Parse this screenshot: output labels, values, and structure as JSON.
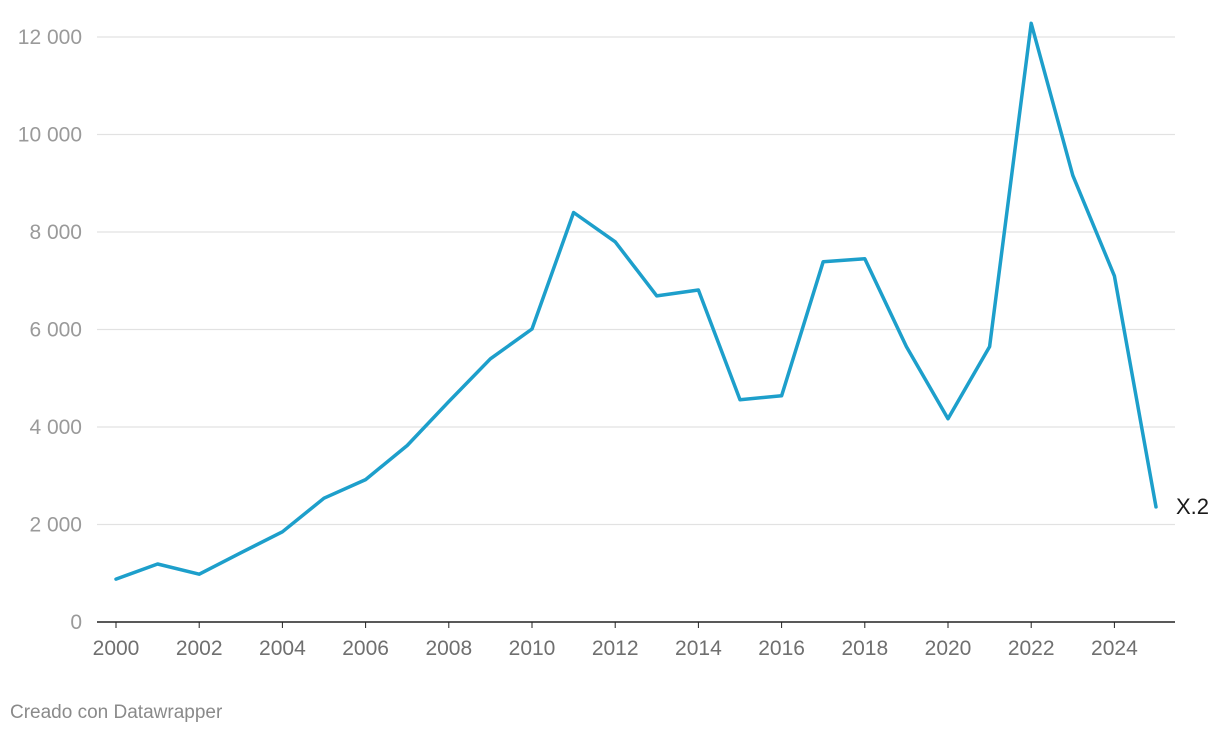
{
  "chart_data": {
    "type": "line",
    "x": [
      2000,
      2001,
      2002,
      2003,
      2004,
      2005,
      2006,
      2007,
      2008,
      2009,
      2010,
      2011,
      2012,
      2013,
      2014,
      2015,
      2016,
      2017,
      2018,
      2019,
      2020,
      2021,
      2022,
      2023,
      2024,
      2025
    ],
    "series": [
      {
        "name": "X.2",
        "color": "#1d9fcb",
        "values": [
          880,
          1190,
          980,
          1420,
          1850,
          2540,
          2920,
          3620,
          4520,
          5400,
          6010,
          8400,
          7800,
          6690,
          6810,
          4560,
          4640,
          7390,
          7450,
          5650,
          4170,
          5650,
          12280,
          9160,
          7100,
          2360
        ]
      }
    ],
    "y_ticks": [
      0,
      2000,
      4000,
      6000,
      8000,
      10000,
      12000
    ],
    "y_tick_labels": [
      "0",
      "2 000",
      "4 000",
      "6 000",
      "8 000",
      "10 000",
      "12 000"
    ],
    "x_ticks": [
      2000,
      2002,
      2004,
      2006,
      2008,
      2010,
      2012,
      2014,
      2016,
      2018,
      2020,
      2022,
      2024
    ],
    "x_tick_labels": [
      "2000",
      "2002",
      "2004",
      "2006",
      "2008",
      "2010",
      "2012",
      "2014",
      "2016",
      "2018",
      "2020",
      "2022",
      "2024"
    ],
    "xlim": [
      2000,
      2025
    ],
    "ylim": [
      0,
      12000
    ],
    "grid": true,
    "title": "",
    "xlabel": "",
    "ylabel": ""
  },
  "credit": "Creado con Datawrapper"
}
